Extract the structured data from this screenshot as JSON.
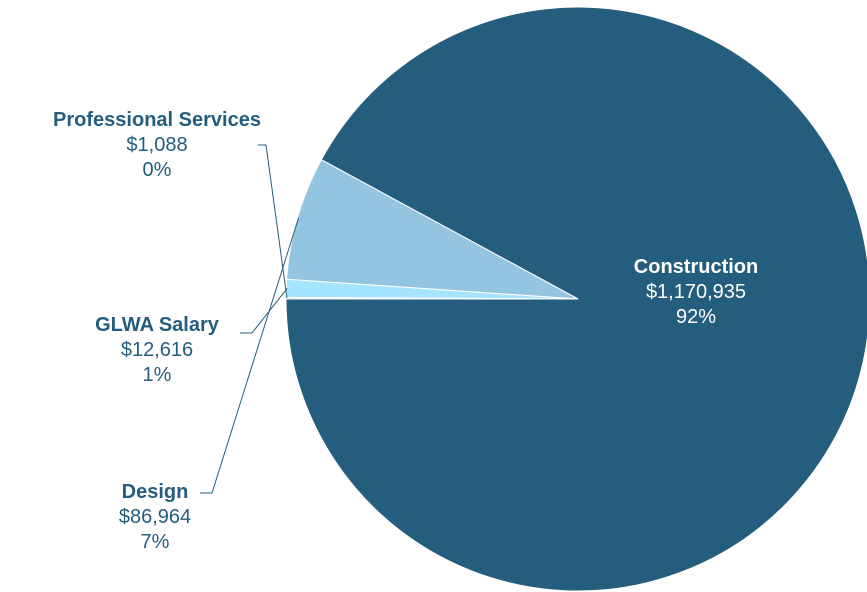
{
  "chart_data": {
    "type": "pie",
    "title": "",
    "slices": [
      {
        "label": "Construction",
        "amount": "$1,170,935",
        "percent": "92%",
        "value": 1170935,
        "color": "#255d7e",
        "label_color": "#ffffff"
      },
      {
        "label": "Design",
        "amount": "$86,964",
        "percent": "7%",
        "value": 86964,
        "color": "#93c4e0",
        "label_color": "#255d7e"
      },
      {
        "label": "GLWA Salary",
        "amount": "$12,616",
        "percent": "1%",
        "value": 12616,
        "color": "#a5e4ff",
        "label_color": "#255d7e"
      },
      {
        "label": "Professional Services",
        "amount": "$1,088",
        "percent": "0%",
        "value": 1088,
        "color": "#d6eefa",
        "label_color": "#255d7e"
      }
    ],
    "start_angle_deg": 180,
    "direction": "counterclockwise",
    "legend": "none",
    "data_labels": "category, value, percentage"
  }
}
